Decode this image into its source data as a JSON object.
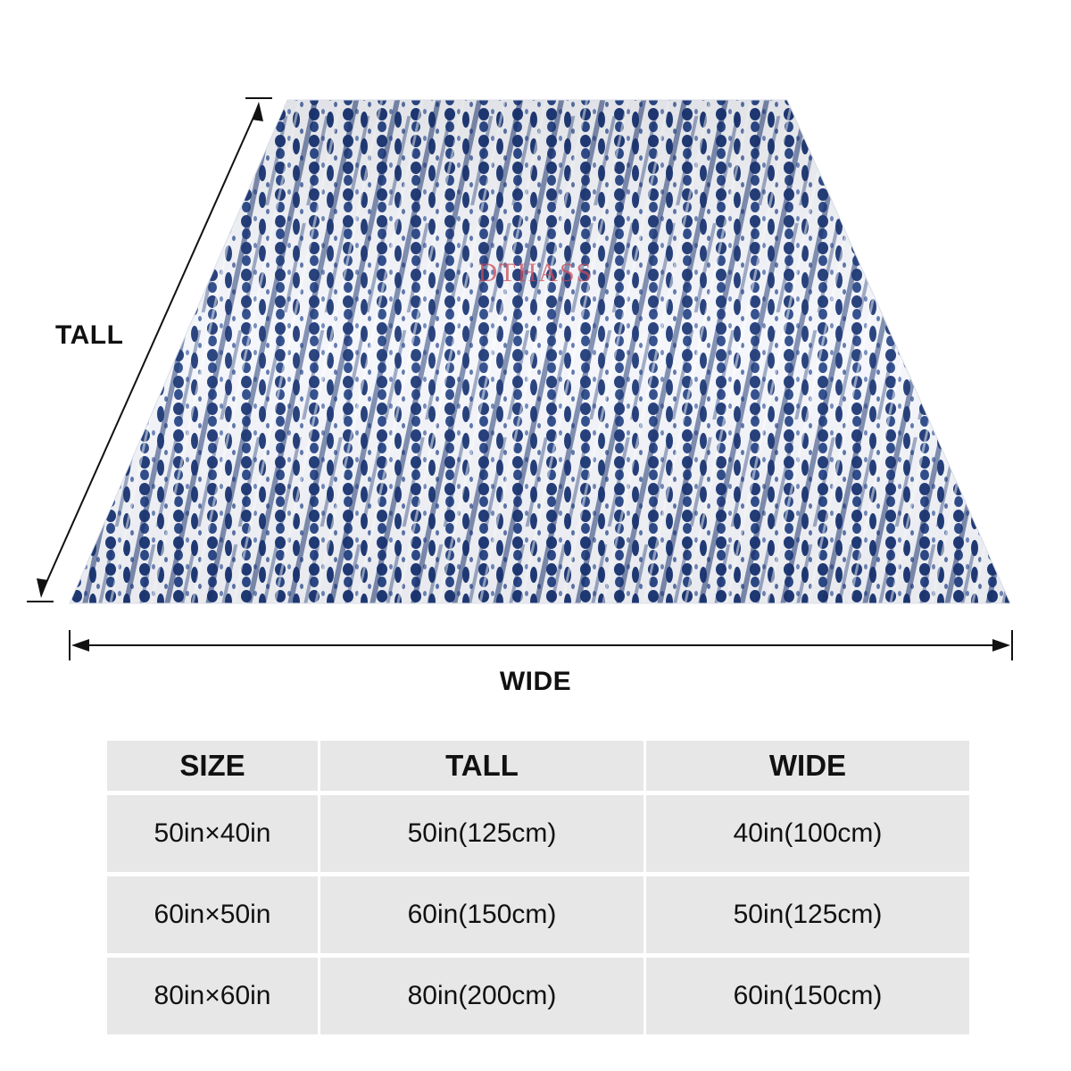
{
  "dimension_labels": {
    "tall": "TALL",
    "wide": "WIDE"
  },
  "product_image": {
    "subject": "blanket",
    "pattern": "shibori tie-dye stripes",
    "colors": {
      "indigo": "#1f3a78",
      "white": "#f4f6fb",
      "watermark": "#c94a5a"
    },
    "watermark_text": "DTHASS"
  },
  "size_table": {
    "headers": [
      "SIZE",
      "TALL",
      "WIDE"
    ],
    "rows": [
      [
        "50in×40in",
        "50in(125cm)",
        "40in(100cm)"
      ],
      [
        "60in×50in",
        "60in(150cm)",
        "50in(125cm)"
      ],
      [
        "80in×60in",
        "80in(200cm)",
        "60in(150cm)"
      ]
    ]
  }
}
